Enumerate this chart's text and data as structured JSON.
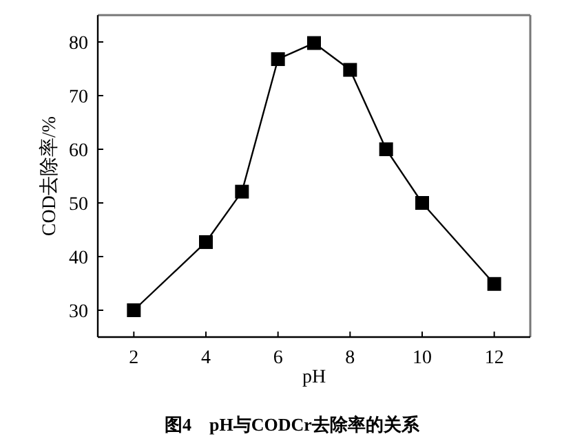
{
  "chart_data": {
    "type": "line",
    "title": "图4　pH与CODCr去除率的关系",
    "xlabel": "pH",
    "ylabel": "COD去除率/%",
    "x": [
      2,
      4,
      5,
      6,
      7,
      8,
      9,
      10,
      12
    ],
    "series": [
      {
        "color": "#000000",
        "values": [
          30,
          42.7,
          52.1,
          76.8,
          79.8,
          74.8,
          60.0,
          50.0,
          34.9
        ]
      }
    ],
    "xlim": [
      1,
      13
    ],
    "ylim": [
      25,
      85
    ],
    "xticks": [
      2,
      4,
      6,
      8,
      10,
      12
    ],
    "yticks": [
      30,
      40,
      50,
      60,
      70,
      80
    ],
    "grid": false,
    "marker": "square",
    "line_style": "solid"
  }
}
